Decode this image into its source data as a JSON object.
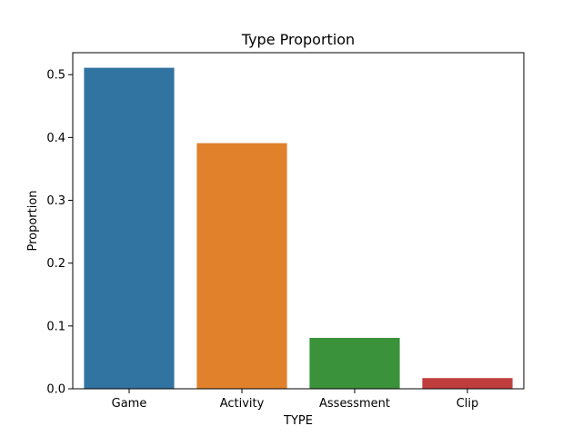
{
  "chart_data": {
    "type": "bar",
    "title": "Type Proportion",
    "xlabel": "TYPE",
    "ylabel": "Proportion",
    "categories": [
      "Game",
      "Activity",
      "Assessment",
      "Clip"
    ],
    "values": [
      0.511,
      0.391,
      0.081,
      0.017
    ],
    "colors": [
      "#3274a1",
      "#e1812c",
      "#3a923a",
      "#c03d3e"
    ],
    "ylim": [
      0,
      0.535
    ],
    "yticks": [
      0.0,
      0.1,
      0.2,
      0.3,
      0.4,
      0.5
    ],
    "ytick_labels": [
      "0.0",
      "0.1",
      "0.2",
      "0.3",
      "0.4",
      "0.5"
    ],
    "grid": false,
    "legend": false
  }
}
